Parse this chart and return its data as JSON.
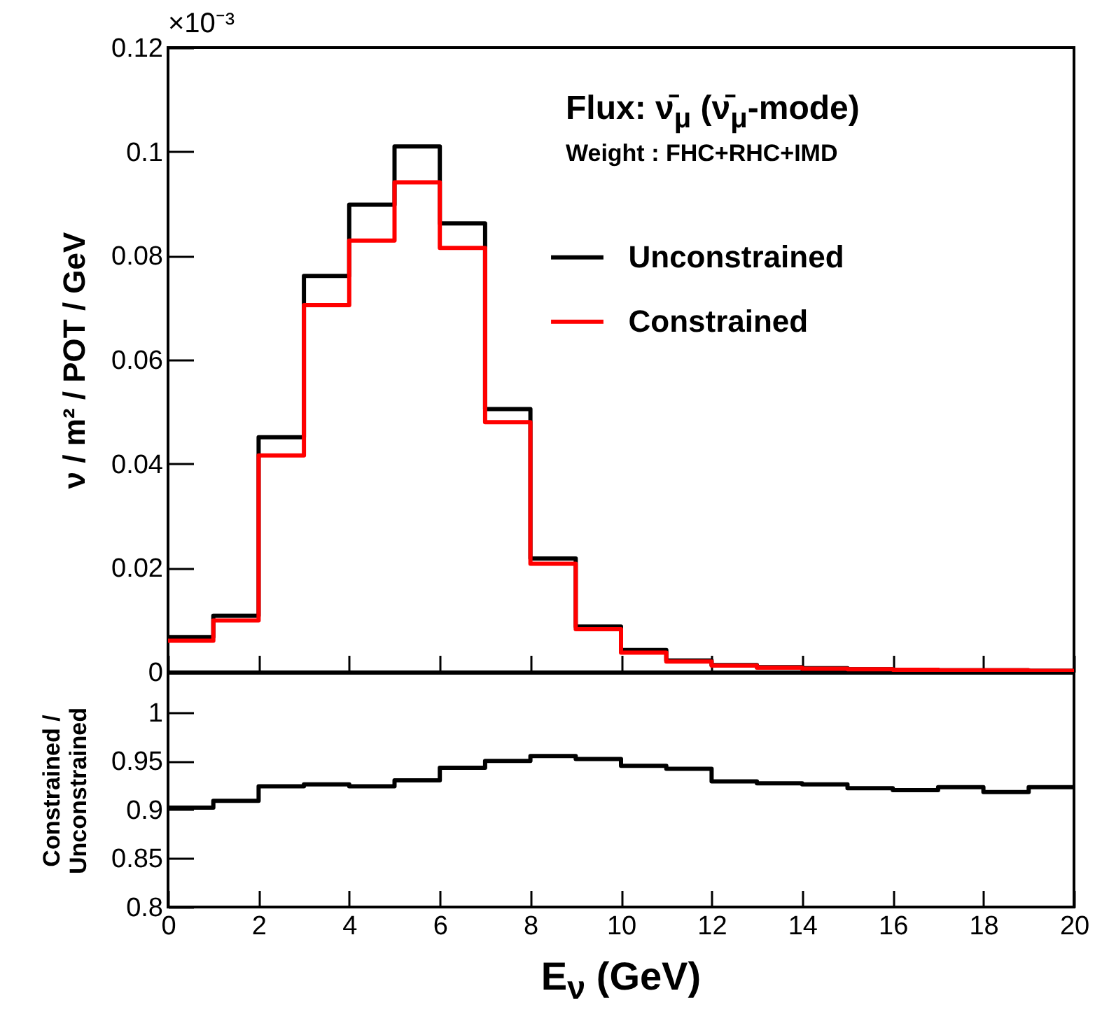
{
  "chart_data": [
    {
      "type": "histogram",
      "ylabel": "ν / m² / POT / GeV",
      "annotations": [
        "×10⁻³",
        "Flux: ν̄$_{μ}$ (ν̄$_{μ}$-mode)",
        "Weight : FHC+RHC+IMD"
      ],
      "bins": [
        0,
        1,
        2,
        3,
        4,
        5,
        6,
        7,
        8,
        9,
        10,
        11,
        12,
        13,
        14,
        15,
        16,
        17,
        18,
        19,
        20
      ],
      "series": [
        {
          "name": "Unconstrained",
          "color": "#000000",
          "values": [
            0.0067,
            0.0108,
            0.0451,
            0.0761,
            0.0898,
            0.101,
            0.0862,
            0.0505,
            0.0218,
            0.0087,
            0.0042,
            0.0022,
            0.0013,
            0.0009,
            0.0007,
            0.0005,
            0.0004,
            0.0003,
            0.0003,
            0.0002
          ]
        },
        {
          "name": "Constrained",
          "color": "#ff0000",
          "values": [
            0.006,
            0.0099,
            0.0416,
            0.0705,
            0.0829,
            0.0941,
            0.0815,
            0.048,
            0.0208,
            0.0082,
            0.0037,
            0.002,
            0.0012,
            0.0008,
            0.0006,
            0.0005,
            0.0004,
            0.0003,
            0.0003,
            0.0002
          ]
        }
      ],
      "xlim": [
        0,
        20
      ],
      "xticks": [
        0,
        2,
        4,
        6,
        8,
        10,
        12,
        14,
        16,
        18,
        20
      ],
      "ylim": [
        0,
        0.12
      ],
      "yticks": [
        0,
        0.02,
        0.04,
        0.06,
        0.08,
        0.1,
        0.12
      ],
      "tick_labels": "y",
      "legend": "top right"
    },
    {
      "type": "histogram",
      "xlabel": "E$_{ν}$ (GeV)",
      "ylabel": "Constrained /\nUnconstrained",
      "bins": [
        0,
        1,
        2,
        3,
        4,
        5,
        6,
        7,
        8,
        9,
        10,
        11,
        12,
        13,
        14,
        15,
        16,
        17,
        18,
        19,
        20
      ],
      "series": [
        {
          "color": "#000000",
          "values": [
            0.902,
            0.909,
            0.924,
            0.926,
            0.924,
            0.93,
            0.943,
            0.95,
            0.955,
            0.952,
            0.945,
            0.942,
            0.929,
            0.927,
            0.926,
            0.922,
            0.92,
            0.923,
            0.918,
            0.923
          ]
        }
      ],
      "xlim": [
        0,
        20
      ],
      "xticks": [
        0,
        2,
        4,
        6,
        8,
        10,
        12,
        14,
        16,
        18,
        20
      ],
      "ylim": [
        0.8,
        1.04
      ],
      "yticks": [
        0.8,
        0.85,
        0.9,
        0.95,
        1
      ]
    }
  ]
}
